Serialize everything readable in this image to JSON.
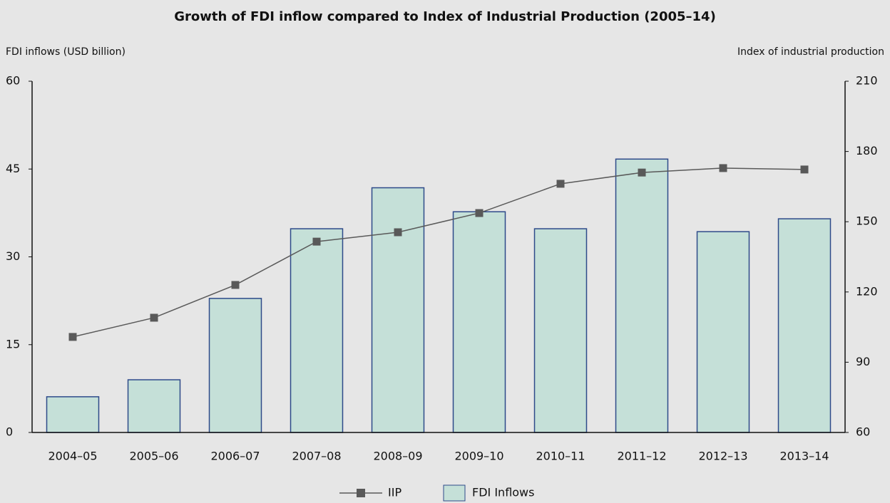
{
  "chart_data": {
    "type": "bar",
    "title": "Growth of FDI inflow compared to Index of Industrial Production (2005–14)",
    "y_label": "FDI inflows (USD billion)",
    "y2_label": "Index of industrial production",
    "categories": [
      "2004–05",
      "2005–06",
      "2006–07",
      "2007–08",
      "2008–09",
      "2009–10",
      "2010–11",
      "2011–12",
      "2012–13",
      "2013–14"
    ],
    "series": [
      {
        "name": "IIP",
        "type": "line",
        "axis": "y2",
        "color": "#595959",
        "values": [
          100.8,
          109,
          123,
          141.5,
          145.5,
          153.7,
          166.2,
          171,
          172.9,
          172.3
        ]
      },
      {
        "name": "FDI Inflows",
        "type": "bar",
        "color": "#c5e0d8",
        "edge_color": "#2e4a8a",
        "values": [
          6.1,
          9.0,
          22.9,
          34.8,
          41.8,
          37.7,
          34.8,
          46.7,
          34.3,
          36.5
        ]
      }
    ],
    "ylim": [
      0,
      60
    ],
    "yticks": [
      0,
      15,
      30,
      45,
      60
    ],
    "y2lim": [
      60,
      210
    ],
    "y2ticks": [
      60,
      90,
      120,
      150,
      180,
      210
    ],
    "legend": "bottom",
    "grid": false
  }
}
